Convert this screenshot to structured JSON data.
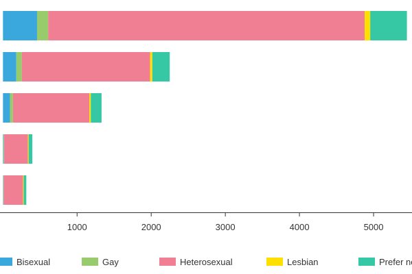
{
  "chart_data": {
    "type": "bar",
    "orientation": "horizontal",
    "stacked": true,
    "title": "",
    "xlabel": "",
    "ylabel": "",
    "xlim": [
      -40,
      5500
    ],
    "x_ticks": [
      1000,
      2000,
      3000,
      4000,
      5000
    ],
    "x_tick_labels": [
      "1000",
      "2000",
      "3000",
      "4000",
      "5000"
    ],
    "grid": false,
    "legend_position": "bottom",
    "categories": [
      "",
      "",
      "",
      "",
      ""
    ],
    "series": [
      {
        "name": "Bisexual",
        "color": "#3aa8dc",
        "values": [
          460,
          180,
          95,
          8,
          5
        ]
      },
      {
        "name": "Gay",
        "color": "#98cb6c",
        "values": [
          150,
          75,
          40,
          8,
          5
        ]
      },
      {
        "name": "Heterosexual",
        "color": "#f07f93",
        "values": [
          4270,
          1730,
          1030,
          320,
          260
        ]
      },
      {
        "name": "Lesbian",
        "color": "#ffdf00",
        "values": [
          75,
          30,
          20,
          10,
          10
        ]
      },
      {
        "name": "Prefer not to say",
        "color": "#36c7a4",
        "values": [
          495,
          235,
          145,
          50,
          35
        ]
      }
    ]
  }
}
